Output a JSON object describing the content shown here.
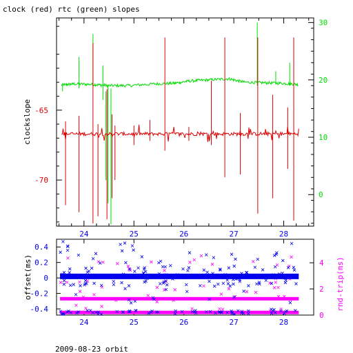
{
  "title": "clock (red) rtc (green) slopes",
  "footer": "2009-08-23 orbit",
  "colors": {
    "clock": "#dd0000",
    "rtc": "#00dd00",
    "offset": "#0000ee",
    "rndtrip": "#ff00ff",
    "axis": "#000000"
  },
  "chart_data": [
    {
      "type": "line",
      "title": "clock (red) rtc (green) slopes",
      "xlabel": "",
      "ylabel": "clockslope",
      "xlim": [
        23.45,
        28.6
      ],
      "ylim": [
        -73.3,
        -58.4
      ],
      "y2lim": [
        -5.5,
        30.8
      ],
      "xticks": [
        "24",
        "25",
        "26",
        "27",
        "28"
      ],
      "yticks": [
        "-65",
        "-70"
      ],
      "y2ticks": [
        "0",
        "10",
        "20",
        "30"
      ],
      "series": [
        {
          "name": "clock",
          "axis": "left",
          "baseline": -66.7,
          "spikes": [
            [
              23.63,
              -65.8,
              -71.8
            ],
            [
              23.9,
              -65.4,
              -72.3
            ],
            [
              24.18,
              -60.2,
              -73.1
            ],
            [
              24.28,
              -66.0,
              -72.6
            ],
            [
              24.46,
              -63.5,
              -72.8
            ],
            [
              24.56,
              -65.3,
              -71.3
            ],
            [
              24.62,
              -66.1,
              -70.0
            ],
            [
              25.0,
              -66.1,
              -67.5
            ],
            [
              25.32,
              -65.7,
              -67.2
            ],
            [
              25.62,
              -59.8,
              -67.9
            ],
            [
              26.55,
              -62.9,
              -67.5
            ],
            [
              26.82,
              -59.8,
              -69.8
            ],
            [
              27.13,
              -65.2,
              -69.6
            ],
            [
              27.48,
              -59.8,
              -72.4
            ],
            [
              27.78,
              -63.9,
              -71.3
            ],
            [
              28.08,
              -64.8,
              -69.2
            ],
            [
              28.2,
              -59.8,
              -72.9
            ],
            [
              26.1,
              -66.2,
              -67.2
            ]
          ]
        },
        {
          "name": "rtc",
          "axis": "right",
          "points": [
            [
              23.55,
              19.1
            ],
            [
              23.8,
              19.3
            ],
            [
              24.2,
              19.2
            ],
            [
              24.5,
              19.0
            ],
            [
              24.9,
              19.0
            ],
            [
              25.4,
              19.3
            ],
            [
              25.8,
              19.4
            ],
            [
              26.1,
              19.8
            ],
            [
              26.5,
              20.0
            ],
            [
              26.9,
              20.2
            ],
            [
              27.2,
              19.6
            ],
            [
              27.6,
              19.5
            ],
            [
              28.0,
              19.4
            ],
            [
              28.3,
              19.2
            ]
          ],
          "spikes": [
            [
              23.57,
              18.0,
              19.1
            ],
            [
              23.9,
              24.0,
              18.5
            ],
            [
              24.18,
              28.0,
              18.8
            ],
            [
              24.38,
              22.5,
              16.5
            ],
            [
              24.44,
              18.0,
              2.5
            ],
            [
              24.48,
              19.0,
              -1.5
            ],
            [
              24.54,
              18.5,
              -5.2
            ],
            [
              27.47,
              30.0,
              19.0
            ],
            [
              27.84,
              21.5,
              19.2
            ],
            [
              28.12,
              23.0,
              19.0
            ]
          ]
        }
      ]
    },
    {
      "type": "scatter",
      "xlabel": "",
      "ylabel": "offset(ms)",
      "y2label": "rnd-trip(ms)",
      "xlim": [
        23.45,
        28.6
      ],
      "ylim": [
        -0.48,
        0.5
      ],
      "y2lim": [
        0,
        5.8
      ],
      "xticks": [
        "24",
        "25",
        "26",
        "27",
        "28"
      ],
      "yticks": [
        "0.4",
        "0.2",
        "0",
        "-0.2",
        "-0.4"
      ],
      "y2ticks": [
        "0",
        "2",
        "4"
      ],
      "series": [
        {
          "name": "offset",
          "axis": "left",
          "band": [
            23.52,
            28.3
          ],
          "center": 0.02
        },
        {
          "name": "rndtrip",
          "axis": "right",
          "bands": [
            1.25,
            0.2
          ]
        }
      ]
    }
  ]
}
